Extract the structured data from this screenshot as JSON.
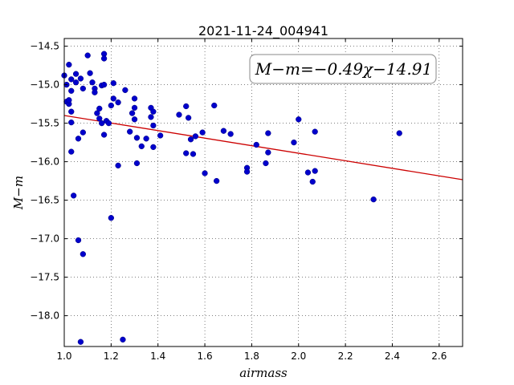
{
  "chart_data": {
    "type": "scatter",
    "title": "2021-11-24_004941",
    "xlabel": "airmass",
    "ylabel": "M−m",
    "xlim": [
      1.0,
      2.7
    ],
    "ylim": [
      -18.4,
      -14.4
    ],
    "xticks": [
      1.0,
      1.2,
      1.4,
      1.6,
      1.8,
      2.0,
      2.2,
      2.4,
      2.6
    ],
    "xtick_labels": [
      "1.0",
      "1.2",
      "1.4",
      "1.6",
      "1.8",
      "2.0",
      "2.2",
      "2.4",
      "2.6"
    ],
    "yticks": [
      -14.5,
      -15.0,
      -15.5,
      -16.0,
      -16.5,
      -17.0,
      -17.5,
      -18.0
    ],
    "ytick_labels": [
      "−14.5",
      "−15.0",
      "−15.5",
      "−16.0",
      "−16.5",
      "−17.0",
      "−17.5",
      "−18.0"
    ],
    "grid": true,
    "annotation": "M−m=−0.49χ−14.91",
    "fit": {
      "slope": -0.49,
      "intercept": -14.91,
      "color": "#cc0000"
    },
    "marker_color": "#0000cc",
    "points": [
      [
        1.0,
        -14.88
      ],
      [
        1.01,
        -15.0
      ],
      [
        1.01,
        -15.22
      ],
      [
        1.02,
        -15.25
      ],
      [
        1.02,
        -15.2
      ],
      [
        1.02,
        -14.74
      ],
      [
        1.03,
        -15.08
      ],
      [
        1.03,
        -14.93
      ],
      [
        1.03,
        -15.35
      ],
      [
        1.03,
        -15.49
      ],
      [
        1.03,
        -15.87
      ],
      [
        1.04,
        -16.44
      ],
      [
        1.05,
        -14.86
      ],
      [
        1.05,
        -14.97
      ],
      [
        1.06,
        -15.7
      ],
      [
        1.06,
        -17.02
      ],
      [
        1.07,
        -14.92
      ],
      [
        1.07,
        -18.34
      ],
      [
        1.08,
        -15.62
      ],
      [
        1.08,
        -15.05
      ],
      [
        1.08,
        -17.2
      ],
      [
        1.1,
        -14.62
      ],
      [
        1.11,
        -14.85
      ],
      [
        1.12,
        -14.97
      ],
      [
        1.13,
        -15.05
      ],
      [
        1.13,
        -15.1
      ],
      [
        1.14,
        -15.37
      ],
      [
        1.15,
        -15.31
      ],
      [
        1.15,
        -15.44
      ],
      [
        1.16,
        -15.5
      ],
      [
        1.16,
        -15.01
      ],
      [
        1.17,
        -14.6
      ],
      [
        1.17,
        -14.66
      ],
      [
        1.17,
        -15.0
      ],
      [
        1.17,
        -15.65
      ],
      [
        1.18,
        -15.47
      ],
      [
        1.19,
        -15.5
      ],
      [
        1.2,
        -16.73
      ],
      [
        1.2,
        -15.27
      ],
      [
        1.21,
        -14.98
      ],
      [
        1.21,
        -15.18
      ],
      [
        1.23,
        -15.23
      ],
      [
        1.23,
        -16.05
      ],
      [
        1.25,
        -18.31
      ],
      [
        1.26,
        -15.07
      ],
      [
        1.28,
        -15.61
      ],
      [
        1.29,
        -15.37
      ],
      [
        1.3,
        -15.45
      ],
      [
        1.3,
        -15.3
      ],
      [
        1.3,
        -15.18
      ],
      [
        1.31,
        -15.69
      ],
      [
        1.31,
        -16.02
      ],
      [
        1.33,
        -15.8
      ],
      [
        1.35,
        -15.7
      ],
      [
        1.37,
        -15.3
      ],
      [
        1.37,
        -15.42
      ],
      [
        1.38,
        -15.35
      ],
      [
        1.38,
        -15.53
      ],
      [
        1.38,
        -15.81
      ],
      [
        1.41,
        -15.66
      ],
      [
        1.49,
        -15.39
      ],
      [
        1.52,
        -15.28
      ],
      [
        1.52,
        -15.89
      ],
      [
        1.53,
        -15.43
      ],
      [
        1.54,
        -15.71
      ],
      [
        1.55,
        -15.9
      ],
      [
        1.56,
        -15.67
      ],
      [
        1.59,
        -15.62
      ],
      [
        1.6,
        -16.15
      ],
      [
        1.64,
        -15.27
      ],
      [
        1.65,
        -16.25
      ],
      [
        1.68,
        -15.6
      ],
      [
        1.71,
        -15.64
      ],
      [
        1.78,
        -16.08
      ],
      [
        1.78,
        -16.13
      ],
      [
        1.82,
        -15.78
      ],
      [
        1.86,
        -16.02
      ],
      [
        1.87,
        -15.63
      ],
      [
        1.87,
        -15.88
      ],
      [
        1.98,
        -15.75
      ],
      [
        2.0,
        -15.45
      ],
      [
        2.04,
        -16.14
      ],
      [
        2.06,
        -16.26
      ],
      [
        2.07,
        -15.61
      ],
      [
        2.07,
        -16.12
      ],
      [
        2.32,
        -16.49
      ],
      [
        2.43,
        -15.63
      ]
    ]
  }
}
